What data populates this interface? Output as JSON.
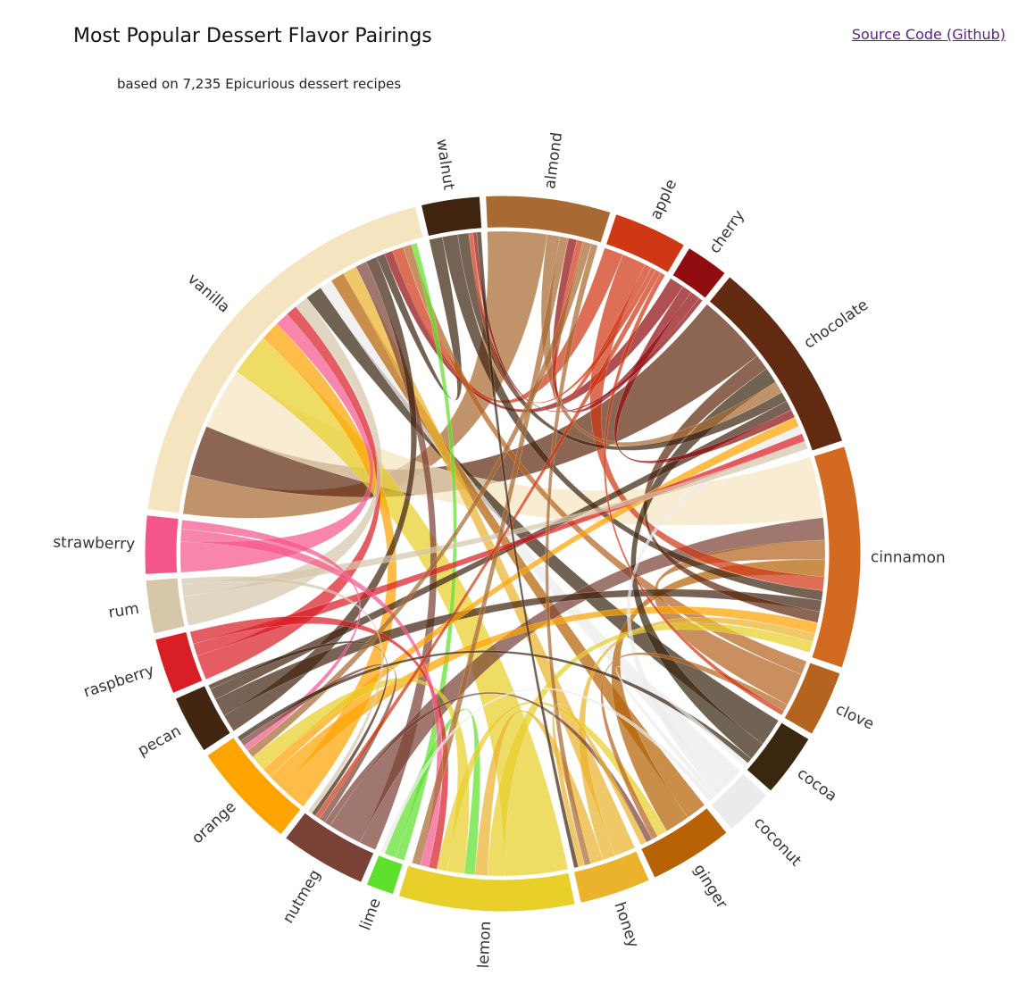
{
  "page": {
    "title": "Most Popular Dessert Flavor Pairings",
    "subtitle": "based on 7,235 Epicurious dessert recipes",
    "source_link": "Source Code (Github)"
  },
  "chart_data": {
    "type": "chord",
    "flavors": [
      {
        "name": "walnut",
        "weight": 1.15,
        "color": "#3f2510"
      },
      {
        "name": "almond",
        "weight": 2.45,
        "color": "#a86a32"
      },
      {
        "name": "apple",
        "weight": 1.45,
        "color": "#cf3814"
      },
      {
        "name": "cherry",
        "weight": 0.85,
        "color": "#900c0f"
      },
      {
        "name": "chocolate",
        "weight": 3.9,
        "color": "#612a11"
      },
      {
        "name": "cinnamon",
        "weight": 4.35,
        "color": "#d26a22"
      },
      {
        "name": "clove",
        "weight": 1.3,
        "color": "#b56420"
      },
      {
        "name": "cocoa",
        "weight": 1.25,
        "color": "#3a2710"
      },
      {
        "name": "coconut",
        "weight": 0.95,
        "color": "#ebebed"
      },
      {
        "name": "ginger",
        "weight": 1.65,
        "color": "#b66205"
      },
      {
        "name": "honey",
        "weight": 1.4,
        "color": "#ebb32c"
      },
      {
        "name": "lemon",
        "weight": 3.45,
        "color": "#e8cf29"
      },
      {
        "name": "lime",
        "weight": 0.55,
        "color": "#5fe02e"
      },
      {
        "name": "nutmeg",
        "weight": 1.7,
        "color": "#7a4236"
      },
      {
        "name": "orange",
        "weight": 2.1,
        "color": "#fea401"
      },
      {
        "name": "pecan",
        "weight": 1.15,
        "color": "#432612"
      },
      {
        "name": "raspberry",
        "weight": 1.1,
        "color": "#d91f25"
      },
      {
        "name": "rum",
        "weight": 1.05,
        "color": "#d6c6aa"
      },
      {
        "name": "strawberry",
        "weight": 1.15,
        "color": "#f5568a"
      },
      {
        "name": "vanilla",
        "weight": 8.3,
        "color": "#f5e4c0"
      }
    ],
    "pairings": [
      [
        "vanilla",
        "almond",
        1.4
      ],
      [
        "vanilla",
        "chocolate",
        1.8
      ],
      [
        "vanilla",
        "cinnamon",
        2.2
      ],
      [
        "vanilla",
        "lemon",
        1.5
      ],
      [
        "vanilla",
        "orange",
        0.7
      ],
      [
        "vanilla",
        "strawberry",
        0.5
      ],
      [
        "vanilla",
        "raspberry",
        0.4
      ],
      [
        "vanilla",
        "rum",
        0.5
      ],
      [
        "vanilla",
        "cocoa",
        0.6
      ],
      [
        "vanilla",
        "coconut",
        0.45
      ],
      [
        "vanilla",
        "ginger",
        0.5
      ],
      [
        "vanilla",
        "honey",
        0.5
      ],
      [
        "vanilla",
        "nutmeg",
        0.4
      ],
      [
        "vanilla",
        "pecan",
        0.4
      ],
      [
        "vanilla",
        "walnut",
        0.3
      ],
      [
        "vanilla",
        "cherry",
        0.3
      ],
      [
        "vanilla",
        "apple",
        0.4
      ],
      [
        "vanilla",
        "clove",
        0.3
      ],
      [
        "vanilla",
        "lime",
        0.2
      ],
      [
        "cinnamon",
        "nutmeg",
        0.8
      ],
      [
        "cinnamon",
        "clove",
        0.7
      ],
      [
        "cinnamon",
        "ginger",
        0.6
      ],
      [
        "cinnamon",
        "apple",
        0.5
      ],
      [
        "cinnamon",
        "walnut",
        0.35
      ],
      [
        "cinnamon",
        "pecan",
        0.4
      ],
      [
        "cinnamon",
        "chocolate",
        0.4
      ],
      [
        "cinnamon",
        "orange",
        0.4
      ],
      [
        "cinnamon",
        "honey",
        0.3
      ],
      [
        "cinnamon",
        "lemon",
        0.4
      ],
      [
        "chocolate",
        "cocoa",
        0.4
      ],
      [
        "chocolate",
        "almond",
        0.3
      ],
      [
        "chocolate",
        "walnut",
        0.25
      ],
      [
        "chocolate",
        "pecan",
        0.25
      ],
      [
        "chocolate",
        "cherry",
        0.2
      ],
      [
        "chocolate",
        "orange",
        0.25
      ],
      [
        "chocolate",
        "coconut",
        0.2
      ],
      [
        "chocolate",
        "raspberry",
        0.2
      ],
      [
        "chocolate",
        "rum",
        0.2
      ],
      [
        "lemon",
        "honey",
        0.3
      ],
      [
        "lemon",
        "lime",
        0.25
      ],
      [
        "lemon",
        "orange",
        0.4
      ],
      [
        "lemon",
        "ginger",
        0.25
      ],
      [
        "lemon",
        "raspberry",
        0.2
      ],
      [
        "lemon",
        "strawberry",
        0.2
      ],
      [
        "lemon",
        "almond",
        0.2
      ],
      [
        "almond",
        "cherry",
        0.2
      ],
      [
        "almond",
        "apple",
        0.15
      ],
      [
        "almond",
        "orange",
        0.2
      ],
      [
        "almond",
        "honey",
        0.15
      ],
      [
        "ginger",
        "clove",
        0.15
      ],
      [
        "ginger",
        "nutmeg",
        0.15
      ],
      [
        "ginger",
        "honey",
        0.15
      ],
      [
        "orange",
        "strawberry",
        0.15
      ],
      [
        "orange",
        "nutmeg",
        0.15
      ],
      [
        "orange",
        "cocoa",
        0.12
      ],
      [
        "apple",
        "walnut",
        0.1
      ],
      [
        "apple",
        "nutmeg",
        0.12
      ],
      [
        "apple",
        "clove",
        0.1
      ],
      [
        "cocoa",
        "coconut",
        0.1
      ],
      [
        "pecan",
        "nutmeg",
        0.1
      ],
      [
        "rum",
        "nutmeg",
        0.1
      ],
      [
        "coconut",
        "lime",
        0.1
      ],
      [
        "cherry",
        "walnut",
        0.08
      ],
      [
        "honey",
        "walnut",
        0.1
      ]
    ]
  }
}
